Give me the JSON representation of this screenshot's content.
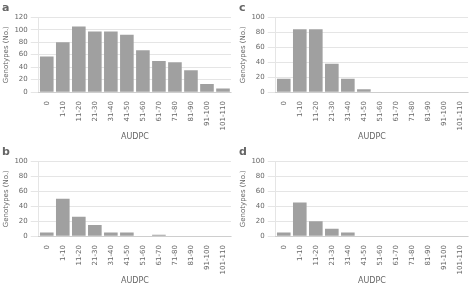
{
  "chart_data": [
    {
      "type": "bar",
      "title": "a",
      "categories": [
        "0",
        "1-10",
        "11-20",
        "21-30",
        "31-40",
        "41-50",
        "51-60",
        "61-70",
        "71-80",
        "81-90",
        "91-100",
        "101-110"
      ],
      "values": [
        57,
        80,
        105,
        97,
        97,
        92,
        67,
        50,
        48,
        35,
        13,
        6
      ],
      "color": "#a0a0a0",
      "x_label": "AUDPC",
      "y_label": "Genotypes (No.)",
      "ylim": [
        0,
        120
      ],
      "yticks": [
        0,
        20,
        40,
        60,
        80,
        100,
        120
      ],
      "grid": true
    },
    {
      "type": "bar",
      "title": "b",
      "categories": [
        "0",
        "1-10",
        "11-20",
        "21-30",
        "31-40",
        "41-50",
        "51-60",
        "61-70",
        "71-80",
        "81-90",
        "91-100",
        "101-110"
      ],
      "values": [
        5,
        50,
        26,
        15,
        5,
        5,
        0,
        2,
        0,
        0,
        0,
        0
      ],
      "color": "#a0a0a0",
      "x_label": "AUDPC",
      "y_label": "Genotypes (No.)",
      "ylim": [
        0,
        100
      ],
      "yticks": [
        0,
        20,
        40,
        60,
        80,
        100
      ],
      "grid": true
    },
    {
      "type": "bar",
      "title": "c",
      "categories": [
        "0",
        "1-10",
        "11-20",
        "21-30",
        "31-40",
        "41-50",
        "51-60",
        "61-70",
        "71-80",
        "81-90",
        "91-100",
        "101-110"
      ],
      "values": [
        18,
        84,
        84,
        38,
        18,
        4,
        0,
        0,
        0,
        0,
        0,
        0
      ],
      "color": "#a0a0a0",
      "x_label": "AUDPC",
      "y_label": "Genotypes (No.)",
      "ylim": [
        0,
        100
      ],
      "yticks": [
        0,
        20,
        40,
        60,
        80,
        100
      ],
      "grid": true
    },
    {
      "type": "bar",
      "title": "d",
      "categories": [
        "0",
        "1-10",
        "11-20",
        "21-30",
        "31-40",
        "41-50",
        "51-60",
        "61-70",
        "71-80",
        "81-90",
        "91-100",
        "101-110"
      ],
      "values": [
        5,
        45,
        20,
        10,
        5,
        0,
        0,
        0,
        0,
        0,
        0,
        0
      ],
      "color": "#a0a0a0",
      "x_label": "AUDPC",
      "y_label": "Genotypes (No.)",
      "ylim": [
        0,
        100
      ],
      "yticks": [
        0,
        20,
        40,
        60,
        80,
        100
      ],
      "grid": true
    }
  ]
}
